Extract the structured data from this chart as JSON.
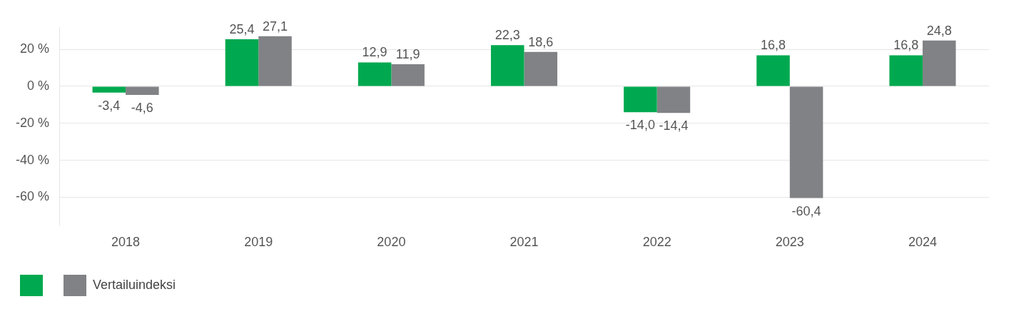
{
  "chart_data": {
    "type": "bar",
    "categories": [
      "2018",
      "2019",
      "2020",
      "2021",
      "2022",
      "2023",
      "2024"
    ],
    "series": [
      {
        "color": "#00a94f",
        "values": [
          -3.4,
          25.4,
          12.9,
          22.3,
          -14.0,
          16.8,
          16.8
        ],
        "value_labels": [
          "-3,4",
          "25,4",
          "12,9",
          "22,3",
          "-14,0",
          "16,8",
          "16,8"
        ]
      },
      {
        "name": "Vertailuindeksi",
        "color": "#808285",
        "values": [
          -4.6,
          27.1,
          11.9,
          18.6,
          -14.4,
          -60.4,
          24.8
        ],
        "value_labels": [
          "-4,6",
          "27,1",
          "11,9",
          "18,6",
          "-14,4",
          "-60,4",
          "24,8"
        ]
      }
    ],
    "ylim": [
      -75,
      32
    ],
    "yticks": [
      {
        "value": -60,
        "label": "-60 %"
      },
      {
        "value": -40,
        "label": "-40 %"
      },
      {
        "value": -20,
        "label": "-20 %"
      },
      {
        "value": 0,
        "label": "0 %"
      },
      {
        "value": 20,
        "label": "20 %"
      }
    ],
    "grid": "y",
    "legend": "bottom left"
  }
}
